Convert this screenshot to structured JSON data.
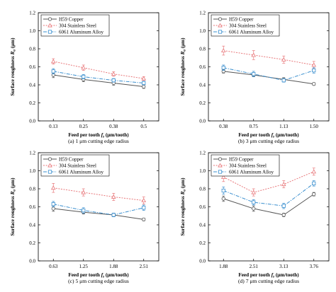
{
  "colors": {
    "copper": "#555555",
    "steel": "#e8777a",
    "aluminum": "#3a8fcf"
  },
  "series_styles": [
    {
      "key": "copper",
      "marker": "circle",
      "dash": ""
    },
    {
      "key": "steel",
      "marker": "triangle",
      "dash": "2,1.6"
    },
    {
      "key": "aluminum",
      "marker": "square",
      "dash": "5,1.6,1.2,1.6"
    }
  ],
  "chart_data": [
    {
      "type": "line",
      "caption": "(a) 1 μm cutting edge radius",
      "xlabel_main": "Feed per tooth ",
      "xlabel_sym": "f",
      "xlabel_sub": "z",
      "xlabel_unit": " (μm/tooth)",
      "ylabel_main": "Surface roughness ",
      "ylabel_sym": "R",
      "ylabel_sub": "a",
      "ylabel_unit": " (μm)",
      "categories": [
        "0.13",
        "0.25",
        "0.38",
        "0.5"
      ],
      "ylim": [
        0,
        1.2
      ],
      "yticks": [
        "0.0",
        "0.2",
        "0.4",
        "0.6",
        "0.8",
        "1.0",
        "1.2"
      ],
      "legend": "top-left",
      "series": [
        {
          "name": "H59 Copper",
          "values": [
            0.51,
            0.46,
            0.42,
            0.38
          ],
          "err": [
            0.03,
            0.025,
            0.025,
            0.02
          ]
        },
        {
          "name": "304 Stainless Steel",
          "values": [
            0.66,
            0.59,
            0.52,
            0.47
          ],
          "err": [
            0.03,
            0.03,
            0.025,
            0.02
          ]
        },
        {
          "name": "6061 Aluminum Alloy",
          "values": [
            0.55,
            0.49,
            0.45,
            0.42
          ],
          "err": [
            0.03,
            0.025,
            0.02,
            0.02
          ]
        }
      ]
    },
    {
      "type": "line",
      "caption": "(b) 3 μm cutting edge radius",
      "xlabel_main": "Feed per tooth ",
      "xlabel_sym": "f",
      "xlabel_sub": "z",
      "xlabel_unit": " (μm/tooth)",
      "ylabel_main": "Surface roughness ",
      "ylabel_sym": "R",
      "ylabel_sub": "a",
      "ylabel_unit": " (μm)",
      "categories": [
        "0.38",
        "0.75",
        "1.13",
        "1.50"
      ],
      "ylim": [
        0,
        1.2
      ],
      "yticks": [
        "0.0",
        "0.2",
        "0.4",
        "0.6",
        "0.8",
        "1.0",
        "1.2"
      ],
      "legend": "top-left",
      "series": [
        {
          "name": "H59 Copper",
          "values": [
            0.55,
            0.51,
            0.46,
            0.41
          ],
          "err": [
            0.02,
            0.02,
            0.02,
            0.015
          ]
        },
        {
          "name": "304 Stainless Steel",
          "values": [
            0.78,
            0.73,
            0.68,
            0.62
          ],
          "err": [
            0.05,
            0.05,
            0.04,
            0.04
          ]
        },
        {
          "name": "6061 Aluminum Alloy",
          "values": [
            0.59,
            0.52,
            0.45,
            0.56
          ],
          "err": [
            0.03,
            0.03,
            0.02,
            0.03
          ]
        }
      ]
    },
    {
      "type": "line",
      "caption": "(c) 5 μm cutting edge radius",
      "xlabel_main": "Feed per tooth ",
      "xlabel_sym": "f",
      "xlabel_sub": "z",
      "xlabel_unit": " (μm/tooth)",
      "ylabel_main": "Surface roughness ",
      "ylabel_sym": "R",
      "ylabel_sub": "a",
      "ylabel_unit": " (μm)",
      "categories": [
        "0.63",
        "1.25",
        "1.88",
        "2.51"
      ],
      "ylim": [
        0,
        1.2
      ],
      "yticks": [
        "0.0",
        "0.2",
        "0.4",
        "0.6",
        "0.8",
        "1.0",
        "1.2"
      ],
      "legend": "top-left",
      "series": [
        {
          "name": "H59 Copper",
          "values": [
            0.58,
            0.54,
            0.51,
            0.46
          ],
          "err": [
            0.03,
            0.02,
            0.02,
            0.015
          ]
        },
        {
          "name": "304 Stainless Steel",
          "values": [
            0.81,
            0.76,
            0.71,
            0.67
          ],
          "err": [
            0.05,
            0.04,
            0.04,
            0.04
          ]
        },
        {
          "name": "6061 Aluminum Alloy",
          "values": [
            0.63,
            0.56,
            0.51,
            0.59
          ],
          "err": [
            0.03,
            0.03,
            0.02,
            0.03
          ]
        }
      ]
    },
    {
      "type": "line",
      "caption": "(d) 7 μm cutting edge radius",
      "xlabel_main": "Feed per tooth ",
      "xlabel_sym": "f",
      "xlabel_sub": "z",
      "xlabel_unit": " (μm/tooth)",
      "ylabel_main": "Surface roughness ",
      "ylabel_sym": "R",
      "ylabel_sub": "a",
      "ylabel_unit": " (μm)",
      "categories": [
        "1.88",
        "2.51",
        "3.13",
        "3.76"
      ],
      "ylim": [
        0,
        1.2
      ],
      "yticks": [
        "0.0",
        "0.2",
        "0.4",
        "0.6",
        "0.8",
        "1.0",
        "1.2"
      ],
      "legend": "top-left",
      "series": [
        {
          "name": "H59 Copper",
          "values": [
            0.69,
            0.58,
            0.51,
            0.74
          ],
          "err": [
            0.03,
            0.03,
            0.02,
            0.02
          ]
        },
        {
          "name": "304 Stainless Steel",
          "values": [
            0.93,
            0.76,
            0.85,
            0.99
          ],
          "err": [
            0.05,
            0.04,
            0.04,
            0.04
          ]
        },
        {
          "name": "6061 Aluminum Alloy",
          "values": [
            0.78,
            0.65,
            0.61,
            0.86
          ],
          "err": [
            0.04,
            0.03,
            0.03,
            0.03
          ]
        }
      ]
    }
  ]
}
